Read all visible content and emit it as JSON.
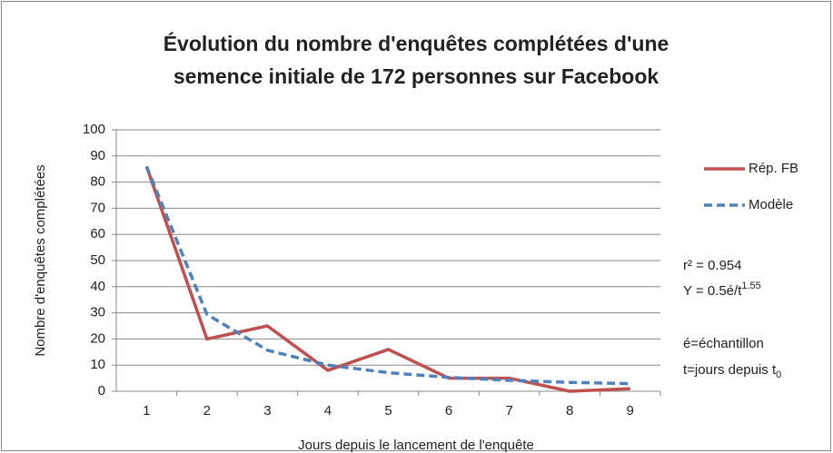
{
  "chart_data": {
    "type": "line",
    "title": [
      "Évolution du nombre d'enquêtes complétées d'une",
      "semence initiale de 172 personnes sur Facebook"
    ],
    "x_label": "Jours depuis le lancement de l'enquête",
    "y_label": "Nombre d'enquêtes complétées",
    "categories": [
      "1",
      "2",
      "3",
      "4",
      "5",
      "6",
      "7",
      "8",
      "9"
    ],
    "series": [
      {
        "name": "Rép. FB",
        "color": "#c0504d",
        "dash": false,
        "values": [
          86,
          20,
          25,
          8,
          16,
          5,
          5,
          0,
          1
        ]
      },
      {
        "name": "Modèle",
        "color": "#4f81bd",
        "dash": true,
        "values": [
          86,
          29.4,
          15.7,
          10,
          7.1,
          5.3,
          4.2,
          3.4,
          2.9
        ]
      }
    ],
    "ylim": [
      0,
      100
    ],
    "yticks": [
      0,
      10,
      20,
      30,
      40,
      50,
      60,
      70,
      80,
      90,
      100
    ],
    "grid": true,
    "legend": "right",
    "annotations": [
      {
        "text": "r² = 0.954"
      },
      {
        "text": "Y = 0.5é/t",
        "sup": "1.55"
      },
      {
        "text": "é=échantillon"
      },
      {
        "text": "t=jours depuis t",
        "sub": "0"
      }
    ]
  }
}
